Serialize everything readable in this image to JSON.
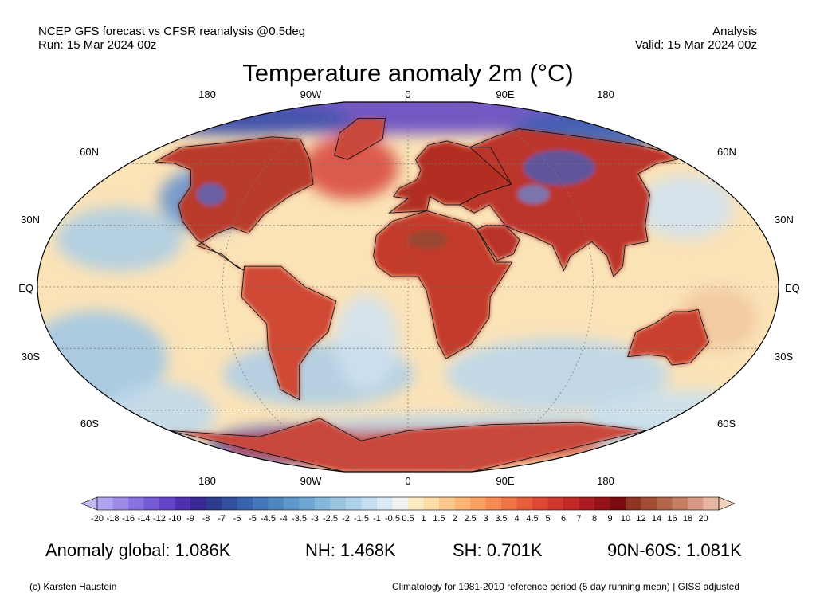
{
  "header": {
    "left_line1": "NCEP GFS forecast vs CFSR reanalysis @0.5deg",
    "left_line2": "Run: 15 Mar 2024 00z",
    "right_line1": "Analysis",
    "right_line2": "Valid: 15 Mar 2024 00z"
  },
  "title": "Temperature anomaly 2m (°C)",
  "map": {
    "projection": "robinson",
    "lon_labels_top": [
      "180",
      "90W",
      "0",
      "90E",
      "180"
    ],
    "lon_labels_bottom": [
      "180",
      "90W",
      "0",
      "90E",
      "180"
    ],
    "lat_labels_left": [
      "60N",
      "30N",
      "EQ",
      "30S",
      "60S"
    ],
    "lat_labels_right": [
      "60N",
      "30N",
      "EQ",
      "30S",
      "60S"
    ]
  },
  "colorbar": {
    "ticks": [
      "-20",
      "-18",
      "-16",
      "-14",
      "-12",
      "-10",
      "-9",
      "-8",
      "-7",
      "-6",
      "-5",
      "-4.5",
      "-4",
      "-3.5",
      "-3",
      "-2.5",
      "-2",
      "-1.5",
      "-1",
      "-0.5",
      "0.5",
      "1",
      "1.5",
      "2",
      "2.5",
      "3",
      "3.5",
      "4",
      "4.5",
      "5",
      "6",
      "7",
      "8",
      "9",
      "10",
      "12",
      "14",
      "16",
      "18",
      "20"
    ],
    "colors": [
      "#c4b8f2",
      "#b1a2ed",
      "#9d8be7",
      "#8a73e0",
      "#765cd6",
      "#6345c9",
      "#5130b0",
      "#3a2a96",
      "#2c3d8e",
      "#304f9e",
      "#3964ad",
      "#4477b8",
      "#5187c1",
      "#5e97ca",
      "#70a7d2",
      "#84b6da",
      "#98c4e2",
      "#aed1ea",
      "#c3def0",
      "#d9eaf5",
      "#f2f2f2",
      "#fbe9c2",
      "#fcdba6",
      "#fcc98c",
      "#fbb574",
      "#f9a062",
      "#f58a52",
      "#f07445",
      "#e85e3b",
      "#de4933",
      "#d1372d",
      "#c12828",
      "#ad1c22",
      "#951218",
      "#7a0b10",
      "#8f3522",
      "#a24d34",
      "#b4664b",
      "#c57f65",
      "#d69a82",
      "#e6b6a0",
      "#f3d2c0"
    ]
  },
  "stats": {
    "global": "Anomaly global: 1.086K",
    "nh": "NH: 1.468K",
    "sh": "SH: 0.701K",
    "arctic": "90N-60S: 1.081K"
  },
  "footer": {
    "credit": "(c) Karsten Haustein",
    "note": "Climatology for 1981-2010 reference period (5 day running mean) | GISS adjusted"
  }
}
